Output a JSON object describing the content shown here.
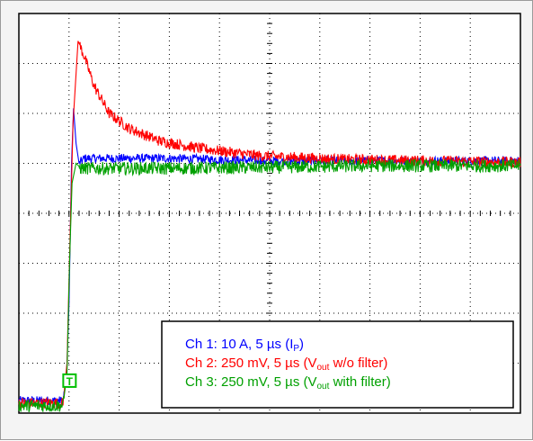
{
  "chart_data": {
    "type": "line",
    "title": "",
    "xlabel": "",
    "ylabel": "",
    "grid": "dotted graticule, 10 x 8 divisions",
    "legend_placement": "bottom-right",
    "x": {
      "unit": "µs",
      "per_division": 5,
      "range": [
        0,
        50
      ]
    },
    "y": {
      "unit": "div",
      "range": [
        -4,
        4
      ]
    },
    "series": [
      {
        "name": "Ch 1",
        "color": "#0000ff",
        "legend": {
          "text": "Ch 1: 10 A, 5 µs (I",
          "sub": "P",
          "tail": ")"
        },
        "points": [
          [
            0,
            -3.75
          ],
          [
            4.4,
            -3.75
          ],
          [
            4.75,
            -3.3
          ],
          [
            5.0,
            -1.8
          ],
          [
            5.25,
            1.0
          ],
          [
            5.45,
            2.1
          ],
          [
            5.7,
            1.4
          ],
          [
            6.0,
            1.0
          ],
          [
            6.5,
            1.1
          ],
          [
            8,
            1.1
          ],
          [
            15,
            1.1
          ],
          [
            25,
            1.05
          ],
          [
            35,
            1.05
          ],
          [
            50,
            1.05
          ]
        ]
      },
      {
        "name": "Ch 2",
        "color": "#ff0000",
        "legend": {
          "text": "Ch 2: 250 mV, 5 µs (V",
          "sub": "out",
          "tail": " w/o filter)"
        },
        "points": [
          [
            0,
            -3.8
          ],
          [
            4.4,
            -3.8
          ],
          [
            4.8,
            -3.0
          ],
          [
            5.1,
            -0.5
          ],
          [
            5.4,
            1.8
          ],
          [
            5.9,
            3.45
          ],
          [
            6.5,
            3.15
          ],
          [
            7.5,
            2.55
          ],
          [
            9,
            2.0
          ],
          [
            11,
            1.7
          ],
          [
            14,
            1.45
          ],
          [
            18,
            1.3
          ],
          [
            24,
            1.15
          ],
          [
            32,
            1.08
          ],
          [
            50,
            1.02
          ]
        ]
      },
      {
        "name": "Ch 3",
        "color": "#00a000",
        "legend": {
          "text": "Ch 3: 250 mV, 5 µs (V",
          "sub": "out",
          "tail": " with filter)"
        },
        "points": [
          [
            0,
            -3.85
          ],
          [
            4.4,
            -3.85
          ],
          [
            4.8,
            -3.2
          ],
          [
            5.05,
            -1.0
          ],
          [
            5.3,
            0.6
          ],
          [
            5.7,
            1.0
          ],
          [
            6.2,
            0.9
          ],
          [
            8,
            0.9
          ],
          [
            15,
            0.9
          ],
          [
            25,
            0.92
          ],
          [
            35,
            0.95
          ],
          [
            50,
            0.95
          ]
        ]
      }
    ],
    "trigger_marker": {
      "label": "T",
      "color": "#00c000"
    }
  }
}
